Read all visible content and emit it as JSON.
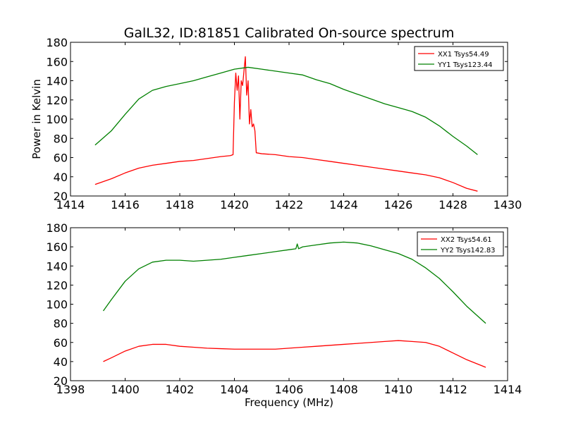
{
  "chart_data": {
    "title": "GalL32, ID:81851 Calibrated On-source spectrum",
    "ylabel": "Power in Kelvin",
    "xlabel": "Frequency (MHz)",
    "panels": [
      {
        "type": "line",
        "xlim": [
          1414,
          1430
        ],
        "ylim": [
          20,
          180
        ],
        "xticks": [
          "1414",
          "1416",
          "1418",
          "1420",
          "1422",
          "1424",
          "1426",
          "1428",
          "1430"
        ],
        "yticks": [
          "20",
          "40",
          "60",
          "80",
          "100",
          "120",
          "140",
          "160",
          "180"
        ],
        "legend_position": "top-right",
        "series": [
          {
            "name": "XX1 Tsys54.49",
            "color": "#ff0000",
            "x": [
              1414.9,
              1415.5,
              1416,
              1416.5,
              1417,
              1417.5,
              1418,
              1418.5,
              1419,
              1419.5,
              1419.85,
              1419.95,
              1420.0,
              1420.05,
              1420.1,
              1420.15,
              1420.2,
              1420.25,
              1420.3,
              1420.35,
              1420.4,
              1420.45,
              1420.5,
              1420.55,
              1420.6,
              1420.65,
              1420.7,
              1420.75,
              1420.8,
              1421.0,
              1421.5,
              1422,
              1422.5,
              1423,
              1423.5,
              1424,
              1424.5,
              1425,
              1425.5,
              1426,
              1426.5,
              1427,
              1427.5,
              1428,
              1428.5,
              1428.9
            ],
            "y": [
              32,
              38,
              44,
              49,
              52,
              54,
              56,
              57,
              59,
              61,
              62,
              63,
              118,
              148,
              130,
              145,
              100,
              140,
              135,
              150,
              165,
              125,
              140,
              95,
              110,
              92,
              95,
              88,
              65,
              64,
              63,
              61,
              60,
              58,
              56,
              54,
              52,
              50,
              48,
              46,
              44,
              42,
              39,
              34,
              28,
              25
            ]
          },
          {
            "name": "YY1 Tsys123.44",
            "color": "#008000",
            "x": [
              1414.9,
              1415.5,
              1416,
              1416.5,
              1417,
              1417.5,
              1418,
              1418.5,
              1419,
              1419.5,
              1420,
              1420.5,
              1421,
              1421.5,
              1422,
              1422.5,
              1423,
              1423.5,
              1424,
              1424.5,
              1425,
              1425.5,
              1426,
              1426.5,
              1427,
              1427.5,
              1428,
              1428.5,
              1428.9
            ],
            "y": [
              73,
              88,
              105,
              121,
              130,
              134,
              137,
              140,
              144,
              148,
              152,
              154,
              152,
              150,
              148,
              146,
              141,
              137,
              131,
              126,
              121,
              116,
              112,
              108,
              102,
              93,
              82,
              72,
              63
            ]
          }
        ]
      },
      {
        "type": "line",
        "xlim": [
          1398,
          1414
        ],
        "ylim": [
          20,
          180
        ],
        "xticks": [
          "1398",
          "1400",
          "1402",
          "1404",
          "1406",
          "1408",
          "1410",
          "1412",
          "1414"
        ],
        "yticks": [
          "20",
          "40",
          "60",
          "80",
          "100",
          "120",
          "140",
          "160",
          "180"
        ],
        "legend_position": "top-right",
        "series": [
          {
            "name": "XX2 Tsys54.61",
            "color": "#ff0000",
            "x": [
              1399.2,
              1399.5,
              1400,
              1400.5,
              1401,
              1401.5,
              1402,
              1402.5,
              1403,
              1403.5,
              1404,
              1404.5,
              1405,
              1405.5,
              1406,
              1406.5,
              1407,
              1407.5,
              1408,
              1408.5,
              1409,
              1409.5,
              1410,
              1410.5,
              1411,
              1411.5,
              1412,
              1412.5,
              1413.2
            ],
            "y": [
              40,
              44,
              51,
              56,
              58,
              58,
              56,
              55,
              54,
              53.5,
              53,
              53,
              53,
              53,
              54,
              55,
              56,
              57,
              58,
              59,
              60,
              61,
              62,
              61,
              60,
              56,
              49,
              42,
              34
            ]
          },
          {
            "name": "YY2 Tsys142.83",
            "color": "#008000",
            "x": [
              1399.2,
              1399.5,
              1400,
              1400.5,
              1401,
              1401.5,
              1402,
              1402.5,
              1403,
              1403.5,
              1404,
              1404.5,
              1405,
              1405.5,
              1406,
              1406.25,
              1406.3,
              1406.35,
              1406.5,
              1407,
              1407.5,
              1408,
              1408.5,
              1409,
              1409.5,
              1410,
              1410.5,
              1411,
              1411.5,
              1412,
              1412.5,
              1413.2
            ],
            "y": [
              93,
              105,
              124,
              137,
              144,
              146,
              146,
              145,
              146,
              147,
              149,
              151,
              153,
              155,
              157,
              158,
              163,
              158,
              160,
              162,
              164,
              165,
              164,
              161,
              157,
              153,
              147,
              138,
              127,
              113,
              98,
              80
            ]
          }
        ]
      }
    ]
  }
}
